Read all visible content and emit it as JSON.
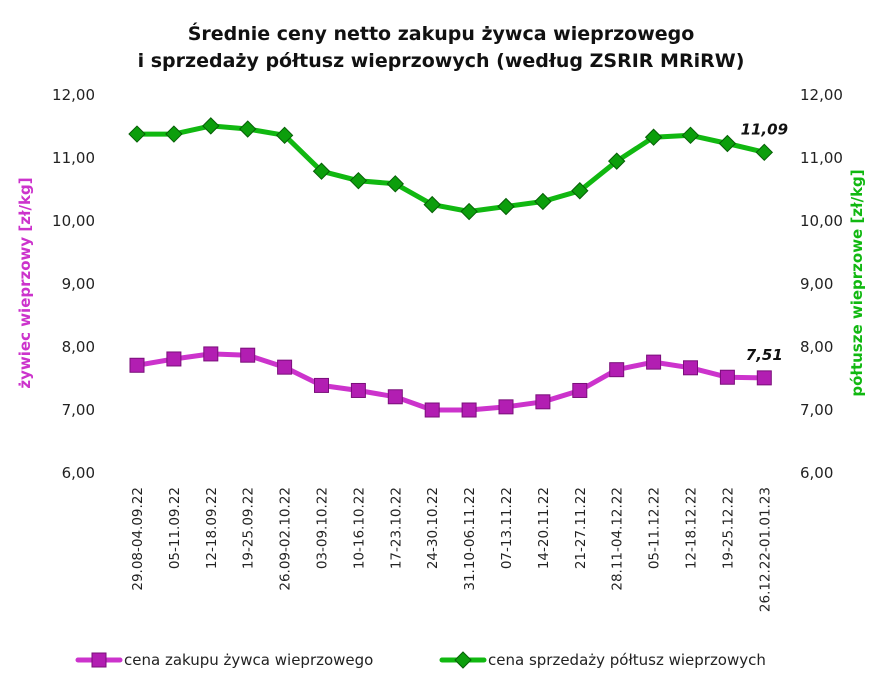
{
  "chart_data": {
    "type": "line",
    "title_line1": "Średnie ceny netto zakupu żywca wieprzowego",
    "title_line2": "i sprzedaży półtusz wieprzowych (według ZSRIR MRiRW)",
    "ylabel_left": "żywiec wieprzowy [zł/kg]",
    "ylabel_right": "półtusze wieprzowe [zł/kg]",
    "ylim": [
      6,
      12
    ],
    "yticks": [
      "6,00",
      "7,00",
      "8,00",
      "9,00",
      "10,00",
      "11,00",
      "12,00"
    ],
    "grid": false,
    "legend_position": "bottom",
    "categories": [
      "29.08-04.09.22",
      "05-11.09.22",
      "12-18.09.22",
      "19-25.09.22",
      "26.09-02.10.22",
      "03-09.10.22",
      "10-16.10.22",
      "17-23.10.22",
      "24-30.10.22",
      "31.10-06.11.22",
      "07-13.11.22",
      "14-20.11.22",
      "21-27.11.22",
      "28.11-04.12.22",
      "05-11.12.22",
      "12-18.12.22",
      "19-25.12.22",
      "26.12.22-01.01.23"
    ],
    "series": [
      {
        "name": "cena zakupu żywca wieprzowego",
        "axis": "left",
        "color": "#cc33cc",
        "marker": "square",
        "values": [
          7.71,
          7.81,
          7.89,
          7.87,
          7.68,
          7.39,
          7.31,
          7.21,
          7.0,
          7.0,
          7.05,
          7.13,
          7.31,
          7.64,
          7.76,
          7.67,
          7.52,
          7.51
        ],
        "last_label": "7,51"
      },
      {
        "name": "cena sprzedaży półtusz wieprzowych",
        "axis": "right",
        "color": "#11b811",
        "marker": "diamond",
        "values": [
          11.38,
          11.38,
          11.51,
          11.46,
          11.36,
          10.79,
          10.64,
          10.59,
          10.26,
          10.15,
          10.23,
          10.31,
          10.48,
          10.95,
          11.33,
          11.36,
          11.23,
          11.09
        ],
        "last_label": "11,09"
      }
    ]
  }
}
